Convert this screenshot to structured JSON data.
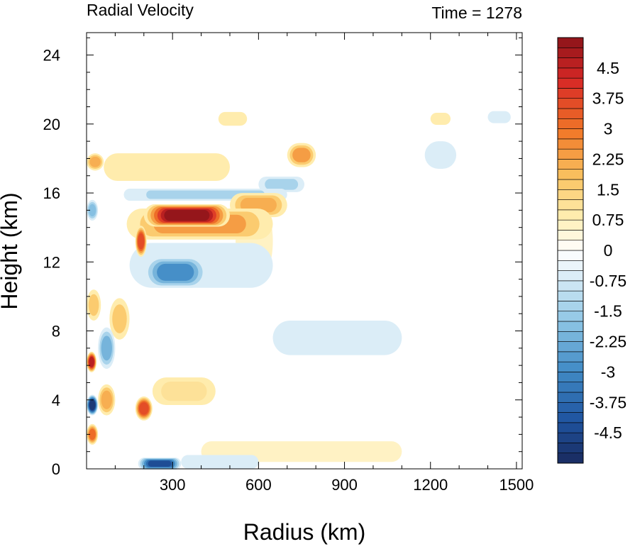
{
  "chart_data": {
    "type": "heatmap",
    "title_left": "Radial Velocity",
    "title_right": "Time = 1278",
    "xlabel": "Radius (km)",
    "ylabel": "Height (km)",
    "xlim": [
      0,
      1520
    ],
    "ylim": [
      0,
      25.3
    ],
    "xticks": [
      300,
      600,
      900,
      1200,
      1500
    ],
    "yticks": [
      0,
      4,
      8,
      12,
      16,
      20,
      24
    ],
    "colorbar": {
      "min": -5.25,
      "max": 5.25,
      "step": 0.25,
      "labels": [
        "4.5",
        "3.75",
        "3",
        "2.25",
        "1.5",
        "0.75",
        "0",
        "-0.75",
        "-1.5",
        "-2.25",
        "-3",
        "-3.75",
        "-4.5"
      ],
      "label_values": [
        4.5,
        3.75,
        3,
        2.25,
        1.5,
        0.75,
        0,
        -0.75,
        -1.5,
        -2.25,
        -3,
        -3.75,
        -4.5
      ]
    },
    "features": [
      {
        "r0": 200,
        "r1": 500,
        "z": 14.7,
        "zw": 0.65,
        "value": 5.0
      },
      {
        "r0": 140,
        "r1": 650,
        "z": 14.2,
        "zw": 0.9,
        "value": 2.5
      },
      {
        "r0": 500,
        "r1": 700,
        "z": 15.3,
        "zw": 0.7,
        "value": 2.0
      },
      {
        "r0": 170,
        "r1": 210,
        "z": 13.2,
        "zw": 0.9,
        "value": 3.5
      },
      {
        "r0": 130,
        "r1": 700,
        "z": 15.9,
        "zw": 0.35,
        "value": -1.6
      },
      {
        "r0": 600,
        "r1": 760,
        "z": 16.5,
        "zw": 0.45,
        "value": -1.5
      },
      {
        "r0": 700,
        "r1": 800,
        "z": 18.2,
        "zw": 0.7,
        "value": 2.3
      },
      {
        "r0": 0,
        "r1": 60,
        "z": 17.8,
        "zw": 0.5,
        "value": 2.0
      },
      {
        "r0": 60,
        "r1": 500,
        "z": 17.5,
        "zw": 0.8,
        "value": 0.8
      },
      {
        "r0": 460,
        "r1": 560,
        "z": 20.3,
        "zw": 0.4,
        "value": 0.8
      },
      {
        "r0": 1200,
        "r1": 1270,
        "z": 20.3,
        "zw": 0.35,
        "value": 0.8
      },
      {
        "r0": 1400,
        "r1": 1480,
        "z": 20.4,
        "zw": 0.35,
        "value": -0.8
      },
      {
        "r0": 1180,
        "r1": 1290,
        "z": 18.2,
        "zw": 0.8,
        "value": -0.9
      },
      {
        "r0": 200,
        "r1": 420,
        "z": 11.4,
        "zw": 0.9,
        "value": -3.0
      },
      {
        "r0": 150,
        "r1": 650,
        "z": 11.8,
        "zw": 1.3,
        "value": -1.0
      },
      {
        "r0": 650,
        "r1": 1100,
        "z": 7.6,
        "zw": 1.0,
        "value": -0.6
      },
      {
        "r0": 0,
        "r1": 40,
        "z": 15.0,
        "zw": 0.6,
        "value": -2.0
      },
      {
        "r0": 0,
        "r1": 50,
        "z": 9.5,
        "zw": 0.9,
        "value": 1.8
      },
      {
        "r0": 0,
        "r1": 35,
        "z": 6.2,
        "zw": 0.6,
        "value": 4.5
      },
      {
        "r0": 0,
        "r1": 40,
        "z": 3.7,
        "zw": 0.6,
        "value": -5.0
      },
      {
        "r0": 0,
        "r1": 40,
        "z": 2.0,
        "zw": 0.6,
        "value": 3.0
      },
      {
        "r0": 40,
        "r1": 100,
        "z": 7.0,
        "zw": 1.2,
        "value": -2.3
      },
      {
        "r0": 40,
        "r1": 100,
        "z": 4.0,
        "zw": 0.9,
        "value": 2.2
      },
      {
        "r0": 80,
        "r1": 150,
        "z": 8.7,
        "zw": 1.2,
        "value": 1.5
      },
      {
        "r0": 170,
        "r1": 230,
        "z": 3.5,
        "zw": 0.7,
        "value": 3.5
      },
      {
        "r0": 230,
        "r1": 450,
        "z": 4.5,
        "zw": 0.8,
        "value": 1.2
      },
      {
        "r0": 180,
        "r1": 330,
        "z": 0.3,
        "zw": 0.35,
        "value": -4.5
      },
      {
        "r0": 330,
        "r1": 600,
        "z": 0.4,
        "zw": 0.4,
        "value": -1.0
      },
      {
        "r0": 400,
        "r1": 1100,
        "z": 1.0,
        "zw": 0.6,
        "value": 0.6
      },
      {
        "r0": 520,
        "r1": 650,
        "z": 13.2,
        "zw": 2.5,
        "value": 0.6
      }
    ]
  }
}
